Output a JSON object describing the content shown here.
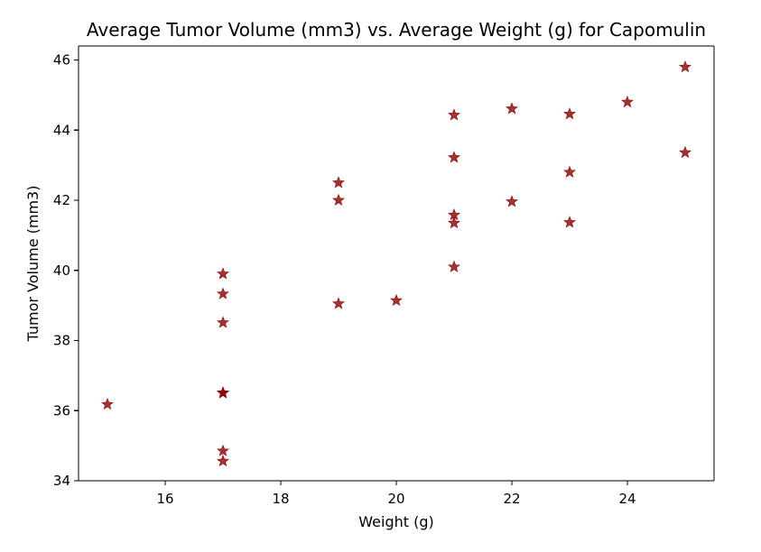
{
  "chart_data": {
    "type": "scatter",
    "title": "Average Tumor Volume (mm3) vs. Average Weight (g) for Capomulin",
    "xlabel": "Weight (g)",
    "ylabel": "Tumor Volume (mm3)",
    "xlim": [
      14.5,
      25.5
    ],
    "ylim": [
      34,
      46.4
    ],
    "xticks": [
      16,
      18,
      20,
      22,
      24
    ],
    "xtick_labels": [
      "16",
      "18",
      "20",
      "22",
      "24"
    ],
    "yticks": [
      34,
      36,
      38,
      40,
      42,
      44,
      46
    ],
    "ytick_labels": [
      "34",
      "36",
      "38",
      "40",
      "42",
      "44",
      "46"
    ],
    "grid": false,
    "marker": "star",
    "color": "#8b0000",
    "points": [
      {
        "x": 15,
        "y": 36.18
      },
      {
        "x": 17,
        "y": 39.9
      },
      {
        "x": 17,
        "y": 39.33
      },
      {
        "x": 17,
        "y": 38.51
      },
      {
        "x": 17,
        "y": 36.51
      },
      {
        "x": 17,
        "y": 36.5
      },
      {
        "x": 17,
        "y": 34.85
      },
      {
        "x": 17,
        "y": 34.56
      },
      {
        "x": 19,
        "y": 42.5
      },
      {
        "x": 19,
        "y": 42.0
      },
      {
        "x": 19,
        "y": 39.05
      },
      {
        "x": 20,
        "y": 39.14
      },
      {
        "x": 21,
        "y": 44.43
      },
      {
        "x": 21,
        "y": 43.22
      },
      {
        "x": 21,
        "y": 41.58
      },
      {
        "x": 21,
        "y": 41.35
      },
      {
        "x": 21,
        "y": 40.1
      },
      {
        "x": 22,
        "y": 44.61
      },
      {
        "x": 22,
        "y": 41.96
      },
      {
        "x": 23,
        "y": 44.46
      },
      {
        "x": 23,
        "y": 42.8
      },
      {
        "x": 23,
        "y": 41.37
      },
      {
        "x": 24,
        "y": 44.8
      },
      {
        "x": 25,
        "y": 45.8
      },
      {
        "x": 25,
        "y": 43.36
      }
    ]
  }
}
